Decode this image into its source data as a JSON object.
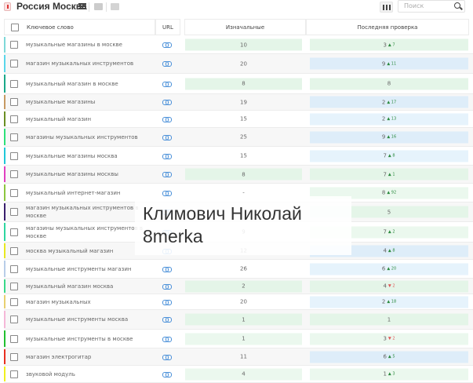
{
  "header": {
    "title": "Россия Москва",
    "search_placeholder": "Поиск"
  },
  "table": {
    "columns": {
      "keyword": "Ключевое слово",
      "url": "URL",
      "initial": "Изначальные",
      "last_check": "Последняя проверка"
    },
    "rows": [
      {
        "keyword": "музыкальные магазины в москве",
        "color": "#7fd8d8",
        "initial": "10",
        "initial_bg": "green",
        "last": "3",
        "change": "7",
        "dir": "up",
        "last_bg": "green"
      },
      {
        "keyword": "магазин музыкальных инструментов",
        "color": "#5ad6ea",
        "initial": "20",
        "initial_bg": "none",
        "last": "9",
        "change": "11",
        "dir": "up",
        "last_bg": "blue"
      },
      {
        "keyword": "музыкальный магазин в москве",
        "color": "#1aa889",
        "initial": "8",
        "initial_bg": "green",
        "last": "8",
        "change": "",
        "dir": "",
        "last_bg": "green"
      },
      {
        "keyword": "музыкальные магазины",
        "color": "#c79a62",
        "initial": "19",
        "initial_bg": "none",
        "last": "2",
        "change": "17",
        "dir": "up",
        "last_bg": "blue"
      },
      {
        "keyword": "музыкальный магазин",
        "color": "#6b8e23",
        "initial": "15",
        "initial_bg": "none",
        "last": "2",
        "change": "13",
        "dir": "up",
        "last_bg": "lblue"
      },
      {
        "keyword": "магазины музыкальных инструментов",
        "color": "#2ee07a",
        "initial": "25",
        "initial_bg": "none",
        "last": "9",
        "change": "16",
        "dir": "up",
        "last_bg": "blue"
      },
      {
        "keyword": "музыкальные магазины москва",
        "color": "#20c8d8",
        "initial": "15",
        "initial_bg": "none",
        "last": "7",
        "change": "8",
        "dir": "up",
        "last_bg": "lblue"
      },
      {
        "keyword": "музыкальные магазины москвы",
        "color": "#e040c0",
        "initial": "8",
        "initial_bg": "green",
        "last": "7",
        "change": "1",
        "dir": "up",
        "last_bg": "green"
      },
      {
        "keyword": "музыкальный интернет-магазин",
        "color": "#8cc63f",
        "initial": "-",
        "initial_bg": "none",
        "last": "8",
        "change": "92",
        "dir": "up",
        "last_bg": "lgreen"
      },
      {
        "keyword": "магазин музыкальных инструментов в москве",
        "color": "#3a1f6e",
        "initial": "",
        "initial_bg": "none",
        "last": "5",
        "change": "",
        "dir": "",
        "last_bg": "green"
      },
      {
        "keyword": "магазины музыкальных инструментов в москве",
        "color": "#2ed6a0",
        "initial": "9",
        "initial_bg": "none",
        "last": "7",
        "change": "2",
        "dir": "up",
        "last_bg": "lgreen"
      },
      {
        "keyword": "москва музыкальный магазин",
        "color": "#e8e820",
        "initial": "12",
        "initial_bg": "none",
        "last": "4",
        "change": "8",
        "dir": "up",
        "last_bg": "blue"
      },
      {
        "keyword": "музыкальные инструменты магазин",
        "color": "#b8cde8",
        "initial": "26",
        "initial_bg": "none",
        "last": "6",
        "change": "20",
        "dir": "up",
        "last_bg": "lblue"
      },
      {
        "keyword": "музыкальный магазин москва",
        "color": "#3ad88a",
        "initial": "2",
        "initial_bg": "green",
        "last": "4",
        "change": "2",
        "dir": "down",
        "last_bg": "green"
      },
      {
        "keyword": "магазин музыкальных",
        "color": "#e8d070",
        "initial": "20",
        "initial_bg": "none",
        "last": "2",
        "change": "18",
        "dir": "up",
        "last_bg": "lblue"
      },
      {
        "keyword": "музыкальные инструменты москва",
        "color": "#f5b8d8",
        "initial": "1",
        "initial_bg": "green",
        "last": "1",
        "change": "",
        "dir": "",
        "last_bg": "green"
      },
      {
        "keyword": "музыкальные инструменты в москве",
        "color": "#22c030",
        "initial": "1",
        "initial_bg": "lgreen",
        "last": "3",
        "change": "2",
        "dir": "down",
        "last_bg": "lgreen"
      },
      {
        "keyword": "магазин электрогитар",
        "color": "#e83020",
        "initial": "11",
        "initial_bg": "none",
        "last": "6",
        "change": "5",
        "dir": "up",
        "last_bg": "blue"
      },
      {
        "keyword": "звуковой модуль",
        "color": "#f0f020",
        "initial": "4",
        "initial_bg": "lgreen",
        "last": "1",
        "change": "3",
        "dir": "up",
        "last_bg": "lgreen"
      }
    ]
  },
  "watermark": {
    "line1": "Климович Николай",
    "line2": "8merka"
  },
  "icons": {
    "up": "▲",
    "down": "▼"
  }
}
